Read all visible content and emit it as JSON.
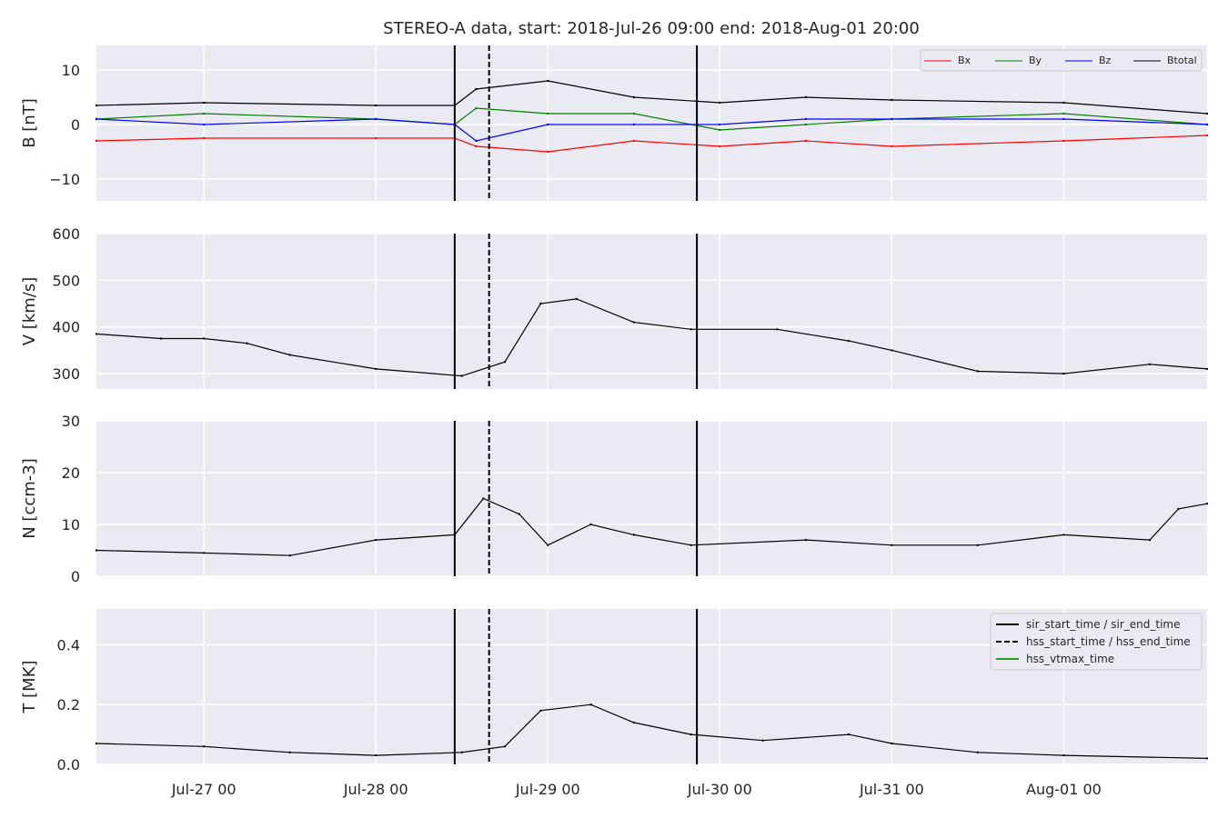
{
  "chart_data": {
    "title": "STEREO-A data, start: 2018-Jul-26 09:00  end: 2018-Aug-01 20:00",
    "type": "line",
    "grid": true,
    "x_range": [
      "2018-07-26T09:00",
      "2018-08-01T20:00"
    ],
    "x_tick_labels": [
      {
        "t": "2018-07-27T00:00",
        "label": "Jul-27 00"
      },
      {
        "t": "2018-07-28T00:00",
        "label": "Jul-28 00"
      },
      {
        "t": "2018-07-29T00:00",
        "label": "Jul-29 00"
      },
      {
        "t": "2018-07-30T00:00",
        "label": "Jul-30 00"
      },
      {
        "t": "2018-07-31T00:00",
        "label": "Jul-31 00"
      },
      {
        "t": "2018-08-01T00:00",
        "label": "Aug-01 00"
      }
    ],
    "event_lines": [
      {
        "t": "2018-07-28T11:00",
        "style": "solid"
      },
      {
        "t": "2018-07-28T15:48",
        "style": "dashed"
      },
      {
        "t": "2018-07-29T20:48",
        "style": "solid"
      }
    ],
    "panels": [
      {
        "ylabel": "B [nT]",
        "ylim": [
          -14,
          14.5
        ],
        "yticks": [
          -10,
          0,
          10
        ],
        "legend": {
          "placement": "top-right",
          "entries": [
            "Bx",
            "By",
            "Bz",
            "Btotal"
          ]
        },
        "series": [
          {
            "name": "Btotal",
            "color": "#000000",
            "x": [
              "2018-07-26T09:00",
              "2018-07-27T00:00",
              "2018-07-28T00:00",
              "2018-07-28T11:00",
              "2018-07-28T14:00",
              "2018-07-29T00:00",
              "2018-07-29T12:00",
              "2018-07-30T00:00",
              "2018-07-30T12:00",
              "2018-07-31T00:00",
              "2018-08-01T00:00",
              "2018-08-01T20:00"
            ],
            "values": [
              3.5,
              4,
              3.5,
              3.5,
              6.5,
              8,
              5,
              4,
              5,
              4.5,
              4,
              2
            ]
          },
          {
            "name": "By",
            "color": "#008000",
            "x": [
              "2018-07-26T09:00",
              "2018-07-27T00:00",
              "2018-07-28T00:00",
              "2018-07-28T11:00",
              "2018-07-28T14:00",
              "2018-07-29T00:00",
              "2018-07-29T12:00",
              "2018-07-30T00:00",
              "2018-07-30T12:00",
              "2018-07-31T00:00",
              "2018-08-01T00:00",
              "2018-08-01T20:00"
            ],
            "values": [
              1,
              2,
              1,
              0,
              3,
              2,
              2,
              -1,
              0,
              1,
              2,
              0
            ]
          },
          {
            "name": "Bz",
            "color": "#0000ff",
            "x": [
              "2018-07-26T09:00",
              "2018-07-27T00:00",
              "2018-07-28T00:00",
              "2018-07-28T11:00",
              "2018-07-28T14:00",
              "2018-07-29T00:00",
              "2018-07-29T12:00",
              "2018-07-30T00:00",
              "2018-07-30T12:00",
              "2018-07-31T00:00",
              "2018-08-01T00:00",
              "2018-08-01T20:00"
            ],
            "values": [
              1,
              0,
              1,
              0,
              -3,
              0,
              0,
              0,
              1,
              1,
              1,
              0
            ]
          },
          {
            "name": "Bx",
            "color": "#ff0000",
            "x": [
              "2018-07-26T09:00",
              "2018-07-27T00:00",
              "2018-07-28T00:00",
              "2018-07-28T11:00",
              "2018-07-28T14:00",
              "2018-07-29T00:00",
              "2018-07-29T12:00",
              "2018-07-30T00:00",
              "2018-07-30T12:00",
              "2018-07-31T00:00",
              "2018-08-01T00:00",
              "2018-08-01T20:00"
            ],
            "values": [
              -3,
              -2.5,
              -2.5,
              -2.5,
              -4,
              -5,
              -3,
              -4,
              -3,
              -4,
              -3,
              -2
            ]
          }
        ]
      },
      {
        "ylabel": "V [km/s]",
        "ylim": [
          267,
          600
        ],
        "yticks": [
          300,
          400,
          500,
          600
        ],
        "series": [
          {
            "name": "V",
            "color": "#000000",
            "x": [
              "2018-07-26T09:00",
              "2018-07-26T18:00",
              "2018-07-27T00:00",
              "2018-07-27T06:00",
              "2018-07-27T12:00",
              "2018-07-28T00:00",
              "2018-07-28T12:00",
              "2018-07-28T18:00",
              "2018-07-28T23:00",
              "2018-07-29T04:00",
              "2018-07-29T12:00",
              "2018-07-29T20:00",
              "2018-07-30T08:00",
              "2018-07-30T18:00",
              "2018-07-31T00:00",
              "2018-07-31T12:00",
              "2018-08-01T00:00",
              "2018-08-01T12:00",
              "2018-08-01T20:00"
            ],
            "values": [
              385,
              375,
              375,
              365,
              340,
              310,
              295,
              325,
              450,
              460,
              410,
              395,
              395,
              370,
              350,
              305,
              300,
              320,
              310
            ]
          }
        ]
      },
      {
        "ylabel": "N [ccm-3]",
        "ylim": [
          0,
          30
        ],
        "yticks": [
          0,
          10,
          20,
          30
        ],
        "series": [
          {
            "name": "N",
            "color": "#000000",
            "x": [
              "2018-07-26T09:00",
              "2018-07-27T00:00",
              "2018-07-27T12:00",
              "2018-07-28T00:00",
              "2018-07-28T11:00",
              "2018-07-28T15:00",
              "2018-07-28T20:00",
              "2018-07-29T00:00",
              "2018-07-29T06:00",
              "2018-07-29T12:00",
              "2018-07-29T20:00",
              "2018-07-30T12:00",
              "2018-07-31T00:00",
              "2018-07-31T12:00",
              "2018-08-01T00:00",
              "2018-08-01T12:00",
              "2018-08-01T16:00",
              "2018-08-01T20:00"
            ],
            "values": [
              5,
              4.5,
              4,
              7,
              8,
              15,
              12,
              6,
              10,
              8,
              6,
              7,
              6,
              6,
              8,
              7,
              13,
              14
            ]
          }
        ]
      },
      {
        "ylabel": "T [MK]",
        "ylim": [
          0,
          0.52
        ],
        "yticks": [
          0.0,
          0.2,
          0.4
        ],
        "legend": {
          "placement": "top-right",
          "entries": [
            "sir_start_time / sir_end_time",
            "hss_start_time / hss_end_time",
            "hss_vtmax_time"
          ]
        },
        "legend_colors": [
          "#000000",
          "#000000",
          "#2ca02c"
        ],
        "series": [
          {
            "name": "T",
            "color": "#000000",
            "x": [
              "2018-07-26T09:00",
              "2018-07-27T00:00",
              "2018-07-27T12:00",
              "2018-07-28T00:00",
              "2018-07-28T12:00",
              "2018-07-28T18:00",
              "2018-07-28T23:00",
              "2018-07-29T06:00",
              "2018-07-29T12:00",
              "2018-07-29T20:00",
              "2018-07-30T06:00",
              "2018-07-30T18:00",
              "2018-07-31T00:00",
              "2018-07-31T12:00",
              "2018-08-01T00:00",
              "2018-08-01T20:00"
            ],
            "values": [
              0.07,
              0.06,
              0.04,
              0.03,
              0.04,
              0.06,
              0.18,
              0.2,
              0.14,
              0.1,
              0.08,
              0.1,
              0.07,
              0.04,
              0.03,
              0.02
            ]
          }
        ]
      }
    ]
  }
}
